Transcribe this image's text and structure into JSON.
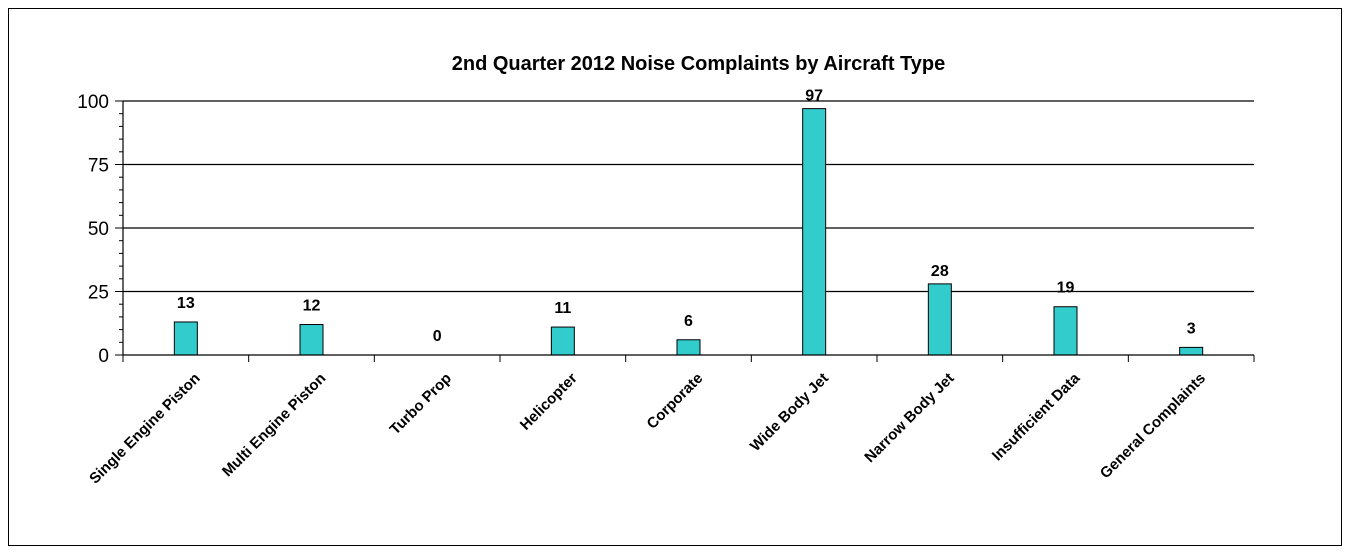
{
  "chart_data": {
    "type": "bar",
    "title": "2nd Quarter 2012 Noise Complaints by Aircraft Type",
    "xlabel": "",
    "ylabel": "",
    "categories": [
      "Single Engine Piston",
      "Multi Engine Piston",
      "Turbo Prop",
      "Helicopter",
      "Corporate",
      "Wide Body Jet",
      "Narrow Body Jet",
      "Insufficient Data",
      "General Complaints"
    ],
    "values": [
      13,
      12,
      0,
      11,
      6,
      97,
      28,
      19,
      3
    ],
    "ylim": [
      0,
      100
    ],
    "yticks": [
      "0",
      "25",
      "50",
      "75",
      "100"
    ],
    "grid": true,
    "legend": "none",
    "bar_color": "#33CCCC"
  }
}
